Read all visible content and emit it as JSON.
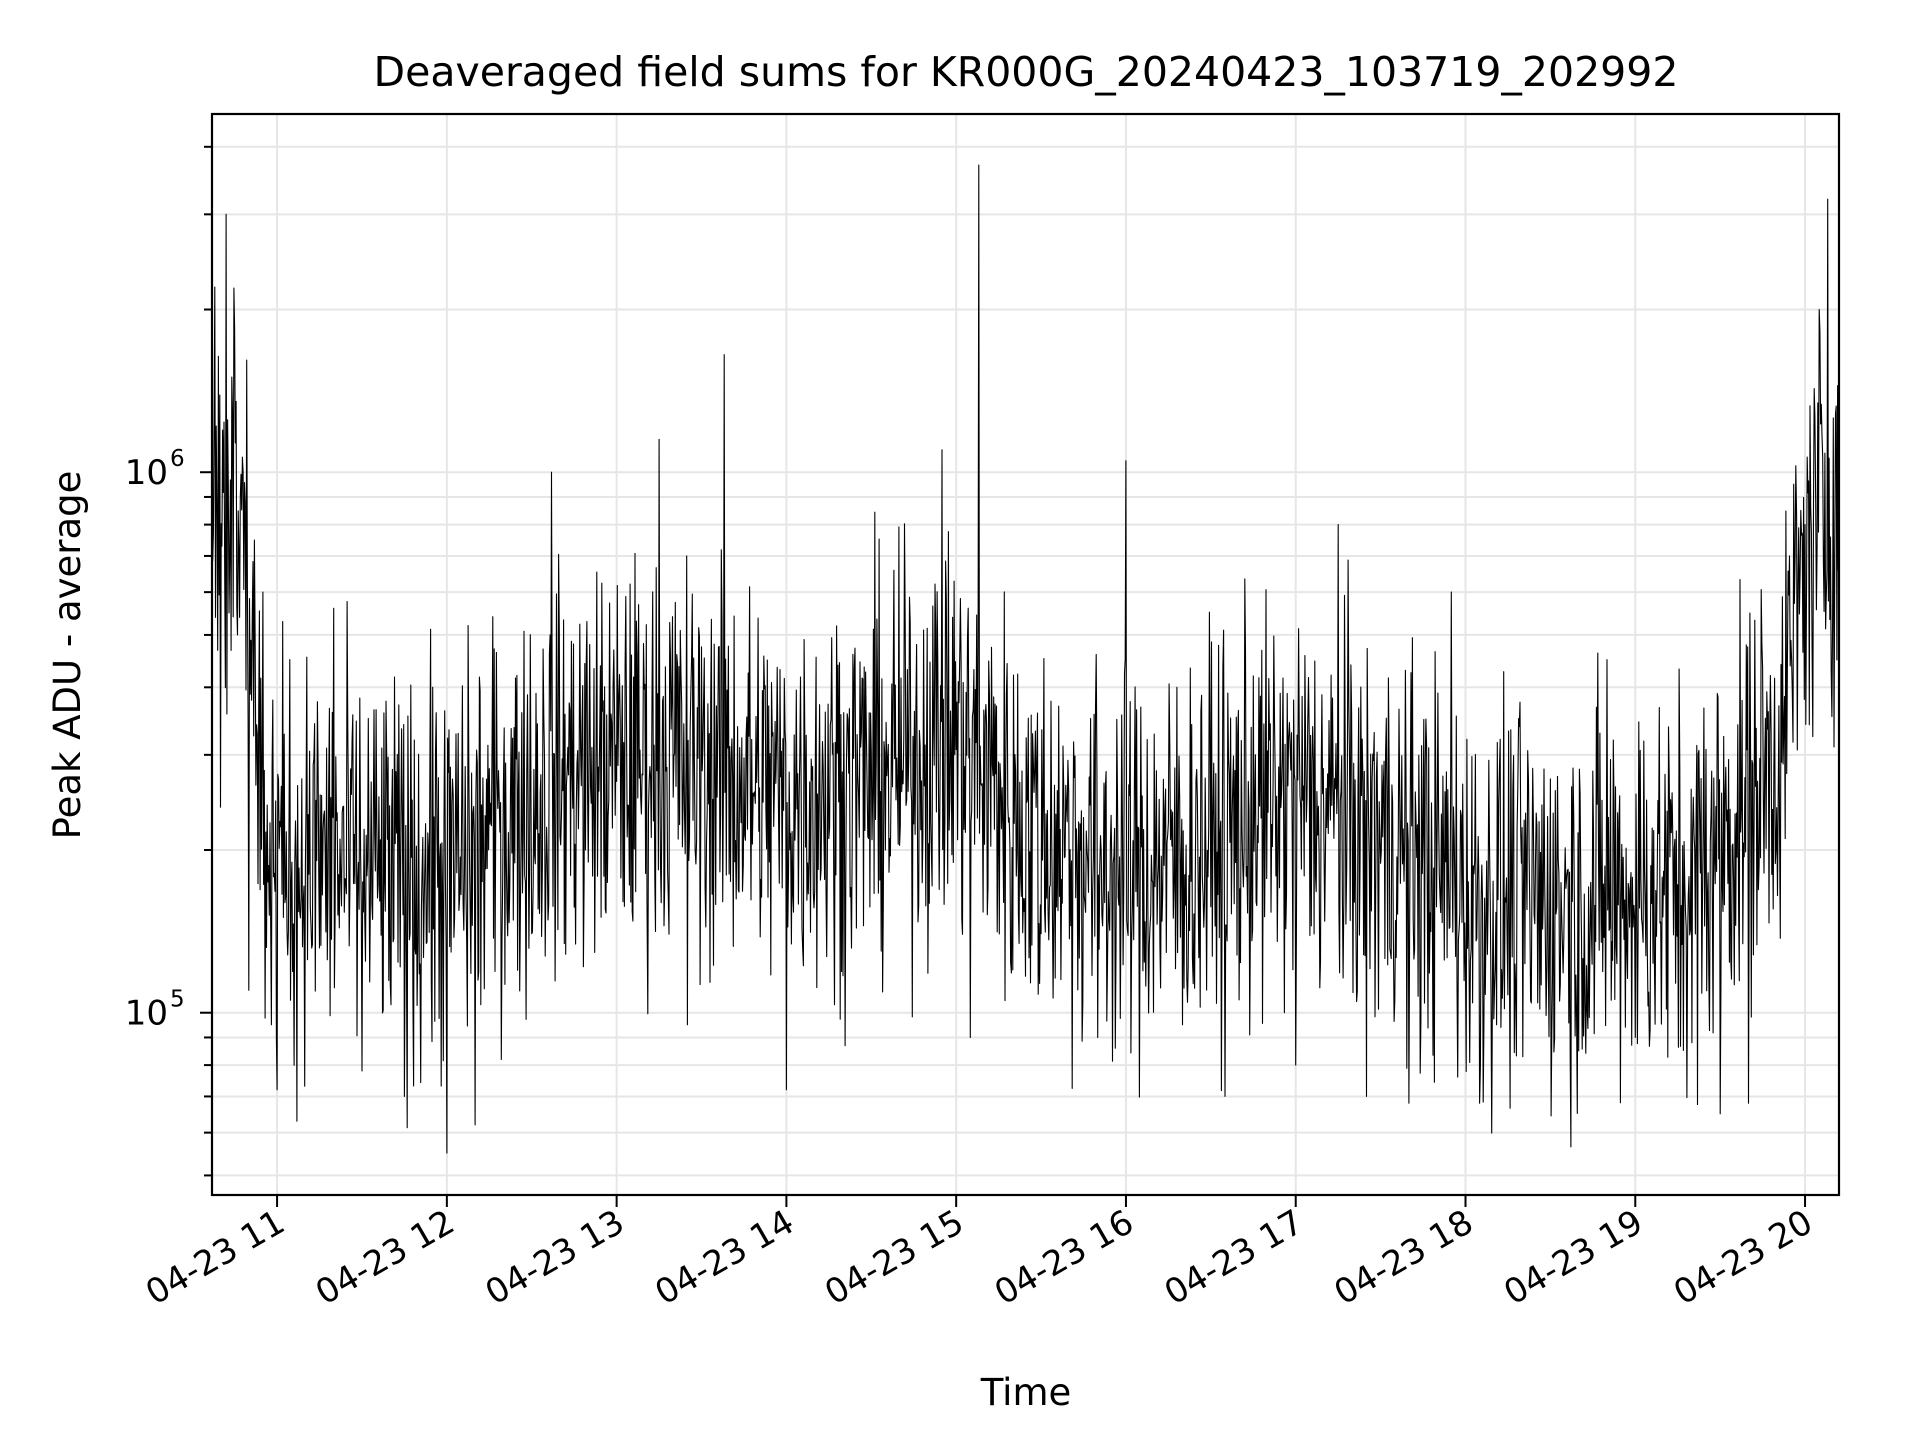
{
  "chart_data": {
    "type": "line",
    "title": "Deaveraged field sums for KR000G_20240423_103719_202992",
    "xlabel": "Time",
    "ylabel": "Peak ADU - average",
    "x_tick_labels": [
      "04-23 11",
      "04-23 12",
      "04-23 13",
      "04-23 14",
      "04-23 15",
      "04-23 16",
      "04-23 17",
      "04-23 18",
      "04-23 19",
      "04-23 20"
    ],
    "x_ticks_datetime": [
      "2024-04-23T11:00",
      "2024-04-23T12:00",
      "2024-04-23T13:00",
      "2024-04-23T14:00",
      "2024-04-23T15:00",
      "2024-04-23T16:00",
      "2024-04-23T17:00",
      "2024-04-23T18:00",
      "2024-04-23T19:00",
      "2024-04-23T20:00"
    ],
    "xlim": [
      "2024-04-23T10:37",
      "2024-04-23T20:12"
    ],
    "y_scale": "log",
    "y_tick_labels": [
      {
        "base": "10",
        "exp": "5",
        "value": 100000
      },
      {
        "base": "10",
        "exp": "6",
        "value": 1000000
      }
    ],
    "ylim": [
      46000,
      4600000
    ],
    "grid": true,
    "line_color": "#000000",
    "series": [
      {
        "values": [
          [
            "2024-04-23T10:37",
            1800000
          ],
          [
            "2024-04-23T10:38",
            2200000
          ],
          [
            "2024-04-23T10:40",
            240000
          ],
          [
            "2024-04-23T10:42",
            3000000
          ],
          [
            "2024-04-23T10:44",
            1500000
          ],
          [
            "2024-04-23T10:46",
            500000
          ],
          [
            "2024-04-23T10:48",
            1000000
          ],
          [
            "2024-04-23T10:50",
            110000
          ],
          [
            "2024-04-23T10:55",
            600000
          ],
          [
            "2024-04-23T10:58",
            95000
          ],
          [
            "2024-04-23T11:00",
            72000
          ],
          [
            "2024-04-23T11:07",
            63000
          ],
          [
            "2024-04-23T11:20",
            560000
          ],
          [
            "2024-04-23T11:30",
            78000
          ],
          [
            "2024-04-23T11:45",
            70000
          ],
          [
            "2024-04-23T11:55",
            400000
          ],
          [
            "2024-04-23T12:00",
            55000
          ],
          [
            "2024-04-23T12:10",
            62000
          ],
          [
            "2024-04-23T12:30",
            140000
          ],
          [
            "2024-04-23T12:37",
            1000000
          ],
          [
            "2024-04-23T12:50",
            190000
          ],
          [
            "2024-04-23T13:15",
            1150000
          ],
          [
            "2024-04-23T13:25",
            95000
          ],
          [
            "2024-04-23T13:38",
            1650000
          ],
          [
            "2024-04-23T14:00",
            72000
          ],
          [
            "2024-04-23T14:15",
            210000
          ],
          [
            "2024-04-23T14:35",
            200000
          ],
          [
            "2024-04-23T14:55",
            1100000
          ],
          [
            "2024-04-23T15:05",
            90000
          ],
          [
            "2024-04-23T15:08",
            3700000
          ],
          [
            "2024-04-23T15:20",
            120000
          ],
          [
            "2024-04-23T15:30",
            140000
          ],
          [
            "2024-04-23T15:50",
            90000
          ],
          [
            "2024-04-23T16:00",
            1050000
          ],
          [
            "2024-04-23T16:20",
            95000
          ],
          [
            "2024-04-23T16:35",
            70000
          ],
          [
            "2024-04-23T16:45",
            420000
          ],
          [
            "2024-04-23T17:00",
            80000
          ],
          [
            "2024-04-23T17:15",
            800000
          ],
          [
            "2024-04-23T17:25",
            70000
          ],
          [
            "2024-04-23T17:40",
            68000
          ],
          [
            "2024-04-23T17:55",
            600000
          ],
          [
            "2024-04-23T18:05",
            68000
          ],
          [
            "2024-04-23T18:20",
            220000
          ],
          [
            "2024-04-23T18:40",
            85000
          ],
          [
            "2024-04-23T18:50",
            450000
          ],
          [
            "2024-04-23T19:00",
            90000
          ],
          [
            "2024-04-23T19:20",
            88000
          ],
          [
            "2024-04-23T19:30",
            65000
          ],
          [
            "2024-04-23T19:40",
            68000
          ],
          [
            "2024-04-23T19:53",
            210000
          ],
          [
            "2024-04-23T20:00",
            800000
          ],
          [
            "2024-04-23T20:05",
            2000000
          ],
          [
            "2024-04-23T20:08",
            3200000
          ],
          [
            "2024-04-23T20:12",
            700000
          ]
        ]
      }
    ]
  }
}
